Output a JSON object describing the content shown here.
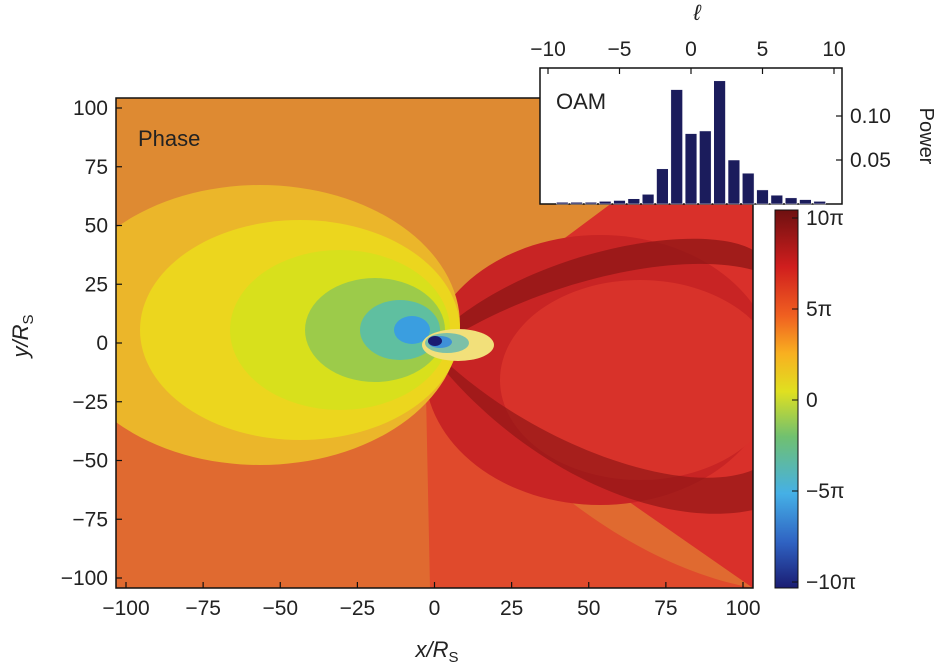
{
  "chart_data": [
    {
      "type": "heatmap",
      "label": "Phase",
      "xlabel": "x/R",
      "xlabel_sub": "S",
      "ylabel": "y/R",
      "ylabel_sub": "S",
      "xlim": [
        -100,
        100
      ],
      "ylim": [
        -100,
        100
      ],
      "xticks": [
        -100,
        -75,
        -50,
        -25,
        0,
        25,
        50,
        75,
        100
      ],
      "yticks": [
        -100,
        -75,
        -50,
        -25,
        0,
        25,
        50,
        75,
        100
      ],
      "xtick_labels": [
        "−100",
        "−75",
        "−50",
        "−25",
        "0",
        "25",
        "50",
        "75",
        "100"
      ],
      "ytick_labels": [
        "−100",
        "−75",
        "−50",
        "−25",
        "0",
        "25",
        "50",
        "75",
        "100"
      ],
      "colorbar": {
        "range": [
          "-10π",
          "10π"
        ],
        "ticks": [
          10,
          5,
          0,
          -5,
          -10
        ],
        "tick_labels": [
          "10π",
          "5π",
          "0",
          "−5π",
          "−10π"
        ],
        "colormap": [
          "#1a1c72",
          "#2f62c2",
          "#45b0e6",
          "#70c070",
          "#e0e020",
          "#f8b020",
          "#f06020",
          "#d01e1e",
          "#6e1010"
        ]
      },
      "grid": false
    },
    {
      "type": "bar",
      "label": "OAM",
      "xlabel": "ℓ",
      "ylabel": "Power",
      "xlim": [
        -10,
        10
      ],
      "ylim": [
        0,
        0.15
      ],
      "xticks": [
        -10,
        -5,
        0,
        5,
        10
      ],
      "xtick_labels": [
        "−10",
        "−5",
        "0",
        "5",
        "10"
      ],
      "yticks": [
        0.05,
        0.1
      ],
      "ytick_labels": [
        "0.05",
        "0.10"
      ],
      "categories": [
        -9,
        -8,
        -7,
        -6,
        -5,
        -4,
        -3,
        -2,
        -1,
        0,
        1,
        2,
        3,
        4,
        5,
        6,
        7,
        8,
        9
      ],
      "values": [
        0.002,
        0.002,
        0.002,
        0.003,
        0.004,
        0.006,
        0.011,
        0.04,
        0.13,
        0.08,
        0.083,
        0.14,
        0.05,
        0.035,
        0.016,
        0.01,
        0.007,
        0.005,
        0.003
      ],
      "bar_color": "#1b1c5c",
      "grid": false
    }
  ]
}
